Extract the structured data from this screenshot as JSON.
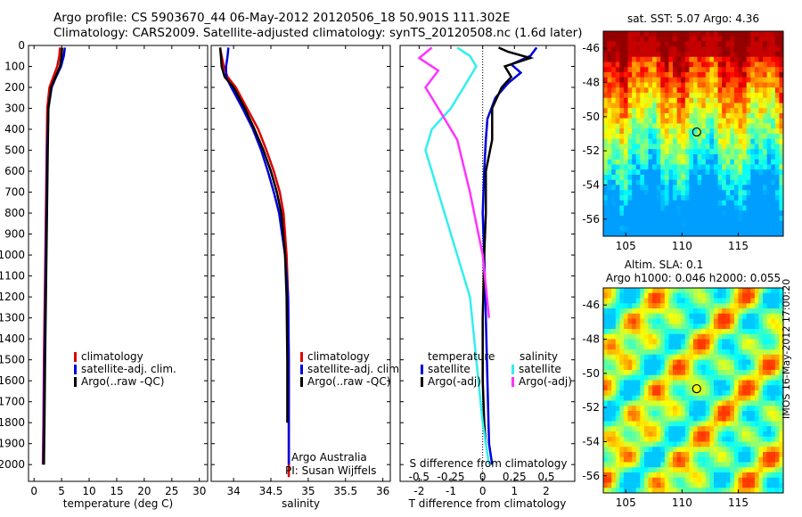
{
  "header": {
    "line1": "Argo profile: CS 5903670_44 06-May-2012 20120506_18 50.901S 111.302E",
    "line2": "Climatology: CARS2009. Satellite-adjusted climatology: synTS_20120508.nc (1.6d later)"
  },
  "stamp": "IMOS 16-May-2012 17:00:20",
  "colors": {
    "climatology": "#dd0000",
    "satellite": "#0000dd",
    "argo": "#000000",
    "sat_salinity": "#33eeee",
    "argo_salinity": "#ff33ff"
  },
  "chart_data": [
    {
      "id": "temperature",
      "type": "line",
      "xlabel": "temperature (deg C)",
      "ylabel": "",
      "xlim": [
        -1,
        31.5
      ],
      "ylim": [
        2080,
        0
      ],
      "xticks": [
        0,
        5,
        10,
        15,
        20,
        25,
        30
      ],
      "yticks": [
        0,
        100,
        200,
        300,
        400,
        500,
        600,
        700,
        800,
        900,
        1000,
        1100,
        1200,
        1300,
        1400,
        1500,
        1600,
        1700,
        1800,
        1900,
        2000
      ],
      "legend": [
        "climatology",
        "satellite-adj. clim.",
        "Argo(..raw -QC)"
      ],
      "series": [
        {
          "name": "climatology",
          "x": [
            4.7,
            4.6,
            4.2,
            3.5,
            2.8,
            2.4,
            2.3,
            2.2,
            2.1,
            2.0,
            1.9,
            1.8,
            1.7,
            1.6
          ],
          "y": [
            10,
            50,
            100,
            150,
            200,
            300,
            500,
            700,
            900,
            1100,
            1300,
            1500,
            1800,
            2000
          ]
        },
        {
          "name": "satellite-adj. clim.",
          "x": [
            5.6,
            5.4,
            4.9,
            4.0,
            3.2,
            2.6,
            2.4,
            2.3,
            2.2,
            2.1,
            2.0,
            1.9,
            1.8,
            1.7
          ],
          "y": [
            10,
            50,
            100,
            150,
            200,
            300,
            500,
            700,
            900,
            1100,
            1300,
            1500,
            1800,
            2000
          ]
        },
        {
          "name": "Argo(..raw -QC)",
          "x": [
            5.1,
            5.0,
            4.7,
            3.9,
            3.1,
            2.6,
            2.5,
            2.4,
            2.3,
            2.2,
            2.1,
            2.0,
            1.9,
            1.8
          ],
          "y": [
            10,
            50,
            100,
            150,
            200,
            300,
            500,
            700,
            900,
            1100,
            1300,
            1500,
            1800,
            2000
          ]
        }
      ]
    },
    {
      "id": "salinity",
      "type": "line",
      "xlabel": "salinity",
      "xlim": [
        33.7,
        36.1
      ],
      "ylim": [
        2080,
        0
      ],
      "xticks": [
        34,
        34.5,
        35,
        35.5,
        36
      ],
      "legend": [
        "climatology",
        "satellite-adj. clim.",
        "Argo(..raw -QC)"
      ],
      "annotation": [
        "Argo Australia",
        "PI: Susan Wijffels"
      ],
      "series": [
        {
          "name": "climatology",
          "x": [
            33.82,
            33.84,
            33.87,
            33.92,
            34.03,
            34.18,
            34.33,
            34.44,
            34.54,
            34.62,
            34.67,
            34.71,
            34.73,
            34.74,
            34.74,
            34.74
          ],
          "y": [
            10,
            50,
            100,
            150,
            200,
            300,
            400,
            500,
            600,
            700,
            800,
            1000,
            1200,
            1500,
            1800,
            2060
          ]
        },
        {
          "name": "satellite-adj. clim.",
          "x": [
            33.93,
            33.92,
            33.9,
            33.9,
            33.97,
            34.12,
            34.26,
            34.37,
            34.46,
            34.54,
            34.61,
            34.69,
            34.73,
            34.74,
            34.74,
            34.74
          ],
          "y": [
            10,
            50,
            100,
            150,
            200,
            300,
            400,
            500,
            600,
            700,
            800,
            1000,
            1200,
            1500,
            1800,
            2000
          ]
        },
        {
          "name": "Argo(..raw -QC)",
          "x": [
            33.82,
            33.83,
            33.84,
            33.88,
            34.0,
            34.15,
            34.28,
            34.4,
            34.5,
            34.58,
            34.64,
            34.69,
            34.71,
            34.72,
            34.72
          ],
          "y": [
            10,
            50,
            100,
            150,
            200,
            300,
            400,
            500,
            600,
            700,
            800,
            1000,
            1200,
            1500,
            1800
          ]
        }
      ]
    },
    {
      "id": "differences",
      "type": "line",
      "xlabel": "T difference from climatology",
      "top_xlabel": "S difference from climatology",
      "xlim": [
        -2.6,
        2.9
      ],
      "ylim": [
        2080,
        0
      ],
      "xticks": [
        -2,
        -1,
        0,
        1,
        2
      ],
      "top_xticks": [
        "-0.5",
        "-0.25",
        "0",
        "0.25",
        "0.5"
      ],
      "legend_temperature_title": "temperature",
      "legend_salinity_title": "salinity",
      "legend": [
        "satellite",
        "Argo(-adj)",
        "satellite",
        "Argo(-adj)"
      ],
      "series": [
        {
          "name": "satellite",
          "quantity": "temperature",
          "x": [
            1.7,
            1.5,
            0.9,
            1.2,
            0.8,
            0.4,
            0.15,
            0.1,
            0.05,
            0.0,
            0.05,
            0.1,
            0.15,
            0.2,
            0.3
          ],
          "y": [
            10,
            50,
            90,
            130,
            180,
            250,
            350,
            450,
            600,
            800,
            1000,
            1300,
            1600,
            1900,
            2000
          ]
        },
        {
          "name": "Argo(-adj)",
          "quantity": "temperature",
          "x": [
            0.5,
            0.8,
            1.5,
            0.7,
            0.9,
            0.6,
            0.3,
            0.3,
            0.1,
            0.1,
            0.05,
            0.0,
            0.0,
            0.05,
            0.1
          ],
          "y": [
            10,
            30,
            60,
            100,
            150,
            200,
            300,
            450,
            600,
            800,
            1000,
            1300,
            1600,
            1800,
            1900
          ]
        },
        {
          "name": "satellite",
          "quantity": "salinity",
          "x": [
            -0.2,
            -0.1,
            -0.05,
            -0.15,
            -0.25,
            -0.4,
            -0.45,
            -0.4,
            -0.3,
            -0.2,
            -0.1,
            -0.05,
            0.0,
            0.05
          ],
          "y": [
            10,
            50,
            100,
            200,
            300,
            400,
            500,
            600,
            800,
            1000,
            1200,
            1500,
            1800,
            2000
          ]
        },
        {
          "name": "Argo(-adj)",
          "quantity": "salinity",
          "x": [
            -0.4,
            -0.5,
            -0.35,
            -0.45,
            -0.35,
            -0.2,
            -0.1,
            0.0,
            0.05
          ],
          "y": [
            10,
            60,
            120,
            200,
            300,
            450,
            700,
            1000,
            1300
          ]
        }
      ]
    },
    {
      "id": "sst_map",
      "type": "heatmap",
      "title": "sat. SST: 5.07 Argo: 4.36",
      "xticks": [
        "105",
        "110",
        "115"
      ],
      "yticks": [
        "-46",
        "-48",
        "-50",
        "-52",
        "-54",
        "-56"
      ],
      "xlim": [
        103,
        119
      ],
      "ylim": [
        -57,
        -45
      ],
      "marker": {
        "lon": 111.3,
        "lat": -50.9
      }
    },
    {
      "id": "sla_map",
      "type": "heatmap",
      "title": "Altim. SLA: 0.1",
      "subtitle": "Argo h1000: 0.046 h2000: 0.055",
      "xticks": [
        "105",
        "110",
        "115"
      ],
      "yticks": [
        "-46",
        "-48",
        "-50",
        "-52",
        "-54",
        "-56"
      ],
      "xlim": [
        103,
        119
      ],
      "ylim": [
        -57,
        -45
      ],
      "marker": {
        "lon": 111.3,
        "lat": -50.9
      }
    }
  ]
}
